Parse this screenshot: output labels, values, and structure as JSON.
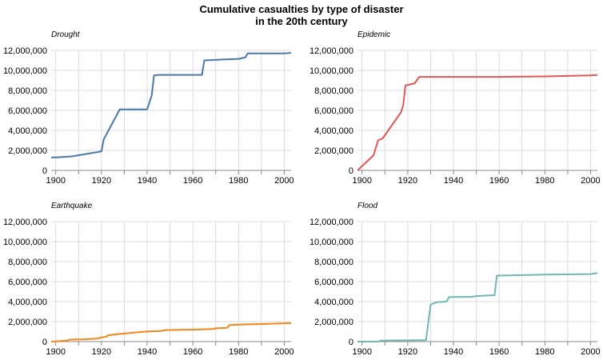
{
  "title_line1": "Cumulative casualties by type of disaster",
  "title_line2": "in the 20th century",
  "chart_data": [
    {
      "type": "line",
      "title": "Drought",
      "color": "#4c78a8",
      "xlim": [
        1898,
        2003
      ],
      "ylim": [
        0,
        12000000
      ],
      "x_ticks": [
        1900,
        1920,
        1940,
        1960,
        1980,
        2000
      ],
      "y_ticks": [
        0,
        2000000,
        4000000,
        6000000,
        8000000,
        10000000,
        12000000
      ],
      "x": [
        1898,
        1900,
        1907,
        1920,
        1921,
        1928,
        1940,
        1942,
        1943,
        1945,
        1964,
        1965,
        1970,
        1974,
        1980,
        1982,
        1983,
        1984,
        2000,
        2003
      ],
      "y": [
        1300000,
        1300000,
        1400000,
        1900000,
        3100000,
        6100000,
        6100000,
        7500000,
        9500000,
        9550000,
        9550000,
        11000000,
        11050000,
        11100000,
        11150000,
        11250000,
        11300000,
        11700000,
        11700000,
        11750000
      ]
    },
    {
      "type": "line",
      "title": "Epidemic",
      "color": "#e45756",
      "xlim": [
        1898,
        2003
      ],
      "ylim": [
        0,
        12000000
      ],
      "x_ticks": [
        1900,
        1920,
        1940,
        1960,
        1980,
        2000
      ],
      "y_ticks": [
        0,
        2000000,
        4000000,
        6000000,
        8000000,
        10000000,
        12000000
      ],
      "x": [
        1898,
        1905,
        1907,
        1909,
        1917,
        1918,
        1919,
        1921,
        1923,
        1925,
        1940,
        1960,
        1980,
        1990,
        2000,
        2003
      ],
      "y": [
        0,
        1500000,
        3000000,
        3200000,
        5800000,
        6500000,
        8500000,
        8600000,
        8700000,
        9350000,
        9350000,
        9350000,
        9400000,
        9450000,
        9500000,
        9550000
      ]
    },
    {
      "type": "line",
      "title": "Earthquake",
      "color": "#f58518",
      "xlim": [
        1898,
        2003
      ],
      "ylim": [
        0,
        12000000
      ],
      "x_ticks": [
        1900,
        1920,
        1940,
        1960,
        1980,
        2000
      ],
      "y_ticks": [
        0,
        2000000,
        4000000,
        6000000,
        8000000,
        10000000,
        12000000
      ],
      "x": [
        1898,
        1905,
        1906,
        1912,
        1918,
        1920,
        1922,
        1923,
        1927,
        1932,
        1939,
        1946,
        1948,
        1960,
        1969,
        1970,
        1975,
        1976,
        1980,
        1990,
        2000,
        2003
      ],
      "y": [
        0,
        100000,
        200000,
        230000,
        300000,
        420000,
        480000,
        630000,
        750000,
        850000,
        1000000,
        1060000,
        1150000,
        1200000,
        1260000,
        1330000,
        1380000,
        1650000,
        1700000,
        1760000,
        1830000,
        1850000
      ]
    },
    {
      "type": "line",
      "title": "Flood",
      "color": "#72b7b2",
      "xlim": [
        1898,
        2003
      ],
      "ylim": [
        0,
        12000000
      ],
      "x_ticks": [
        1900,
        1920,
        1940,
        1960,
        1980,
        2000
      ],
      "y_ticks": [
        0,
        2000000,
        4000000,
        6000000,
        8000000,
        10000000,
        12000000
      ],
      "x": [
        1898,
        1907,
        1908,
        1928,
        1930,
        1931,
        1933,
        1937,
        1938,
        1948,
        1950,
        1954,
        1958,
        1959,
        1970,
        1980,
        2000,
        2003
      ],
      "y": [
        0,
        0,
        100000,
        150000,
        3700000,
        3800000,
        3950000,
        4000000,
        4450000,
        4480000,
        4550000,
        4600000,
        4650000,
        6600000,
        6650000,
        6700000,
        6750000,
        6850000
      ]
    }
  ]
}
